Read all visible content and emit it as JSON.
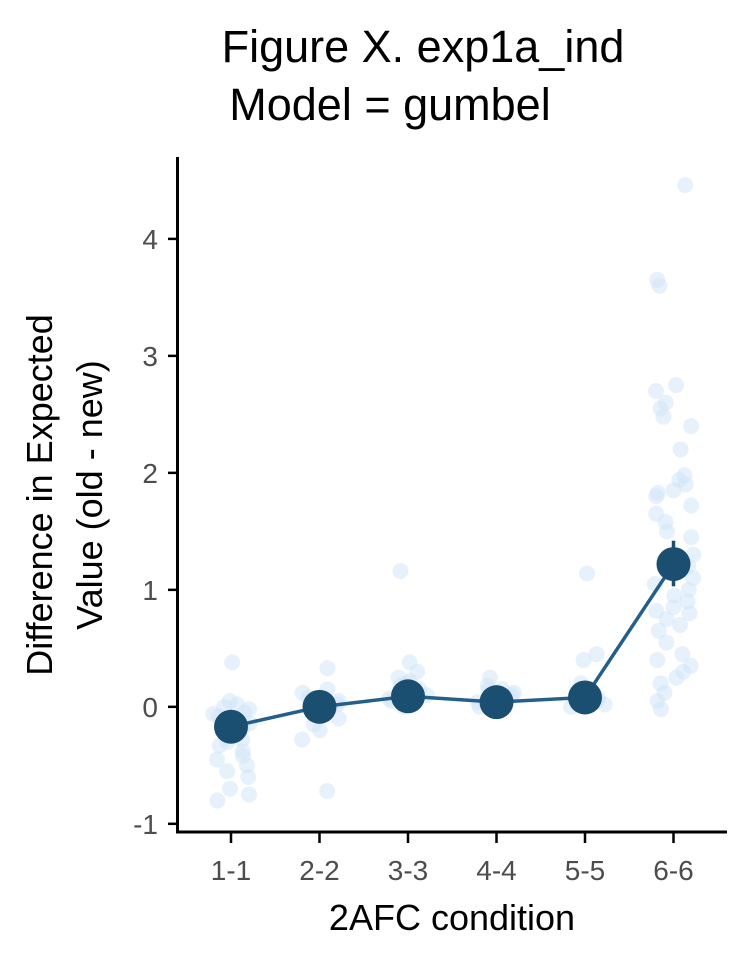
{
  "title_line1": "Figure X. exp1a_ind",
  "title_line2": "Model = gumbel",
  "colors": {
    "mean_point": "#1b4f72",
    "mean_line": "#245f8c",
    "raw_point": "#cfe3f7",
    "axis": "#000000",
    "tick_label": "#4d4d4d"
  },
  "chart_data": {
    "type": "scatter",
    "title": "Figure X. exp1a_ind\nModel = gumbel",
    "xlabel": "2AFC condition",
    "ylabel_lines": [
      "Difference in Expected",
      "Value (old - new)"
    ],
    "categories": [
      "1-1",
      "2-2",
      "3-3",
      "4-4",
      "5-5",
      "6-6"
    ],
    "ylim": [
      -1.07,
      4.7
    ],
    "yticks": [
      -1,
      0,
      1,
      2,
      3,
      4
    ],
    "ytick_labels": [
      "-1",
      "0",
      "1",
      "2",
      "3",
      "4"
    ],
    "grid": false,
    "series": [
      {
        "kind": "mean",
        "values": [
          -0.17,
          0.0,
          0.09,
          0.04,
          0.08,
          1.22
        ],
        "error_low": [
          -0.19,
          -0.02,
          0.07,
          0.03,
          0.06,
          1.03
        ],
        "error_high": [
          -0.15,
          0.02,
          0.11,
          0.05,
          0.1,
          1.42
        ]
      },
      {
        "kind": "raw",
        "points": [
          [
            0,
            0.38
          ],
          [
            0,
            0.05
          ],
          [
            0,
            0.02
          ],
          [
            0,
            -0.02
          ],
          [
            0,
            -0.05
          ],
          [
            0,
            -0.08
          ],
          [
            0,
            -0.1
          ],
          [
            0,
            -0.12
          ],
          [
            0,
            -0.15
          ],
          [
            0,
            -0.18
          ],
          [
            0,
            -0.2
          ],
          [
            0,
            -0.22
          ],
          [
            0,
            -0.25
          ],
          [
            0,
            -0.28
          ],
          [
            0,
            -0.3
          ],
          [
            0,
            -0.33
          ],
          [
            0,
            -0.38
          ],
          [
            0,
            -0.42
          ],
          [
            0,
            -0.45
          ],
          [
            0,
            -0.5
          ],
          [
            0,
            -0.55
          ],
          [
            0,
            -0.6
          ],
          [
            0,
            -0.7
          ],
          [
            0,
            -0.75
          ],
          [
            0,
            -0.8
          ],
          [
            0,
            0.0
          ],
          [
            0,
            -0.14
          ],
          [
            0,
            -0.06
          ],
          [
            1,
            0.33
          ],
          [
            1,
            0.12
          ],
          [
            1,
            0.08
          ],
          [
            1,
            0.05
          ],
          [
            1,
            0.02
          ],
          [
            1,
            0.0
          ],
          [
            1,
            -0.03
          ],
          [
            1,
            -0.06
          ],
          [
            1,
            -0.1
          ],
          [
            1,
            -0.15
          ],
          [
            1,
            -0.2
          ],
          [
            1,
            -0.28
          ],
          [
            1,
            -0.72
          ],
          [
            1,
            0.15
          ],
          [
            2,
            1.16
          ],
          [
            2,
            0.38
          ],
          [
            2,
            0.3
          ],
          [
            2,
            0.25
          ],
          [
            2,
            0.22
          ],
          [
            2,
            0.18
          ],
          [
            2,
            0.15
          ],
          [
            2,
            0.12
          ],
          [
            2,
            0.1
          ],
          [
            2,
            0.07
          ],
          [
            2,
            0.05
          ],
          [
            2,
            0.03
          ],
          [
            2,
            0.0
          ],
          [
            2,
            0.2
          ],
          [
            3,
            0.25
          ],
          [
            3,
            0.18
          ],
          [
            3,
            0.15
          ],
          [
            3,
            0.12
          ],
          [
            3,
            0.1
          ],
          [
            3,
            0.08
          ],
          [
            3,
            0.06
          ],
          [
            3,
            0.04
          ],
          [
            3,
            0.02
          ],
          [
            3,
            0.0
          ],
          [
            3,
            -0.02
          ],
          [
            3,
            0.14
          ],
          [
            4,
            1.14
          ],
          [
            4,
            0.45
          ],
          [
            4,
            0.4
          ],
          [
            4,
            0.2
          ],
          [
            4,
            0.12
          ],
          [
            4,
            0.08
          ],
          [
            4,
            0.05
          ],
          [
            4,
            0.02
          ],
          [
            4,
            0.0
          ],
          [
            4,
            0.1
          ],
          [
            5,
            4.46
          ],
          [
            5,
            3.65
          ],
          [
            5,
            3.6
          ],
          [
            5,
            2.75
          ],
          [
            5,
            2.7
          ],
          [
            5,
            2.6
          ],
          [
            5,
            2.55
          ],
          [
            5,
            2.48
          ],
          [
            5,
            2.4
          ],
          [
            5,
            2.2
          ],
          [
            5,
            1.98
          ],
          [
            5,
            1.94
          ],
          [
            5,
            1.9
          ],
          [
            5,
            1.85
          ],
          [
            5,
            1.83
          ],
          [
            5,
            1.8
          ],
          [
            5,
            1.72
          ],
          [
            5,
            1.65
          ],
          [
            5,
            1.58
          ],
          [
            5,
            1.5
          ],
          [
            5,
            1.45
          ],
          [
            5,
            1.3
          ],
          [
            5,
            1.2
          ],
          [
            5,
            1.1
          ],
          [
            5,
            1.05
          ],
          [
            5,
            1.0
          ],
          [
            5,
            0.95
          ],
          [
            5,
            0.9
          ],
          [
            5,
            0.85
          ],
          [
            5,
            0.82
          ],
          [
            5,
            0.8
          ],
          [
            5,
            0.75
          ],
          [
            5,
            0.7
          ],
          [
            5,
            0.65
          ],
          [
            5,
            0.55
          ],
          [
            5,
            0.45
          ],
          [
            5,
            0.4
          ],
          [
            5,
            0.35
          ],
          [
            5,
            0.3
          ],
          [
            5,
            0.25
          ],
          [
            5,
            0.2
          ],
          [
            5,
            0.12
          ],
          [
            5,
            0.05
          ],
          [
            5,
            -0.02
          ]
        ]
      }
    ]
  }
}
